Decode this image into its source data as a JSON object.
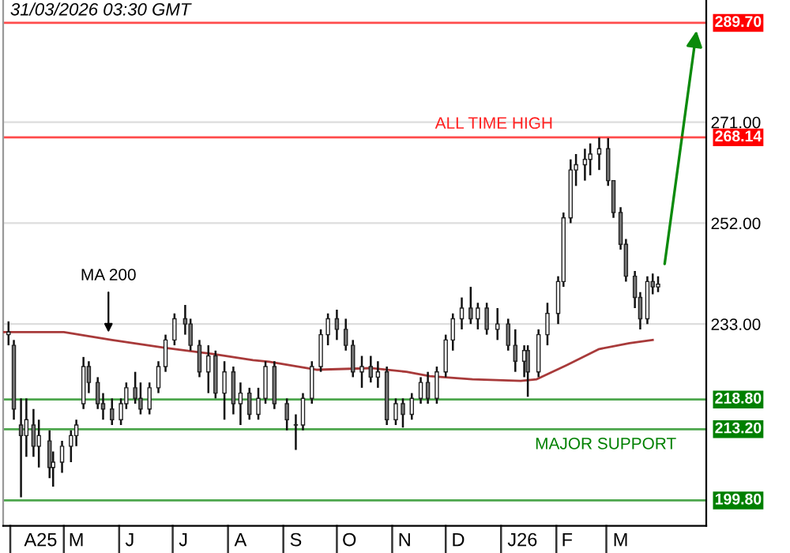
{
  "chart_data": {
    "type": "candlestick",
    "x": [
      "2025-03-31",
      "2025-04-03",
      "2025-04-07",
      "2025-04-10",
      "2025-04-14",
      "2025-04-17",
      "2025-04-23",
      "2025-04-25",
      "2025-04-30",
      "2025-05-05",
      "2025-05-08",
      "2025-05-12",
      "2025-05-15",
      "2025-05-20",
      "2025-05-23",
      "2025-05-28",
      "2025-06-02",
      "2025-06-05",
      "2025-06-10",
      "2025-06-13",
      "2025-06-18",
      "2025-06-23",
      "2025-06-27",
      "2025-07-02",
      "2025-07-08",
      "2025-07-11",
      "2025-07-16",
      "2025-07-21",
      "2025-07-25",
      "2025-07-30",
      "2025-08-04",
      "2025-08-08",
      "2025-08-13",
      "2025-08-18",
      "2025-08-22",
      "2025-08-27",
      "2025-09-03",
      "2025-09-08",
      "2025-09-12",
      "2025-09-17",
      "2025-09-22",
      "2025-09-26",
      "2025-10-01",
      "2025-10-06",
      "2025-10-10",
      "2025-10-15",
      "2025-10-20",
      "2025-10-24",
      "2025-10-29",
      "2025-11-03",
      "2025-11-07",
      "2025-11-12",
      "2025-11-17",
      "2025-11-21",
      "2025-11-26",
      "2025-12-01",
      "2025-12-05",
      "2025-12-10",
      "2025-12-15",
      "2025-12-19",
      "2025-12-24",
      "2025-12-30",
      "2026-01-05",
      "2026-01-09",
      "2026-01-14",
      "2026-01-16",
      "2026-01-22",
      "2026-01-27",
      "2026-02-02",
      "2026-02-05",
      "2026-02-09",
      "2026-02-12",
      "2026-02-17",
      "2026-02-20",
      "2026-02-25",
      "2026-03-02",
      "2026-03-05",
      "2026-03-09",
      "2026-03-12",
      "2026-03-17",
      "2026-03-20",
      "2026-03-24",
      "2026-03-27",
      "2026-03-30"
    ],
    "ohlc": [
      [
        231,
        233.5,
        229,
        231.5
      ],
      [
        229,
        230,
        215,
        217
      ],
      [
        214,
        219,
        200.4,
        212
      ],
      [
        212,
        219,
        208,
        215
      ],
      [
        214,
        217,
        208,
        210
      ],
      [
        210,
        215,
        206,
        212
      ],
      [
        211,
        213,
        204,
        206
      ],
      [
        206,
        209,
        202.4,
        207
      ],
      [
        207,
        211,
        205,
        210
      ],
      [
        210,
        213,
        207,
        212
      ],
      [
        212,
        215,
        210,
        214
      ],
      [
        218,
        226.8,
        217,
        225
      ],
      [
        225,
        226,
        220,
        222
      ],
      [
        222,
        223,
        217,
        218
      ],
      [
        218,
        220,
        215,
        217
      ],
      [
        217,
        219,
        214,
        215
      ],
      [
        215,
        219,
        214,
        218
      ],
      [
        218,
        222,
        217,
        221
      ],
      [
        221,
        224,
        218,
        219
      ],
      [
        219,
        222,
        216,
        217
      ],
      [
        217,
        222,
        216,
        221
      ],
      [
        221,
        226,
        220,
        225
      ],
      [
        225,
        231,
        224,
        230
      ],
      [
        230,
        235,
        229,
        234
      ],
      [
        234,
        236.6,
        231,
        233
      ],
      [
        233,
        234,
        228,
        229
      ],
      [
        229,
        230,
        223,
        224
      ],
      [
        224,
        229,
        220,
        227
      ],
      [
        227,
        228,
        219,
        220
      ],
      [
        220,
        226,
        215,
        224
      ],
      [
        224,
        225,
        216,
        218
      ],
      [
        218,
        222,
        214,
        220
      ],
      [
        220,
        221,
        215,
        216
      ],
      [
        216,
        221,
        215,
        219
      ],
      [
        219,
        226,
        218,
        225
      ],
      [
        225,
        226,
        217,
        218
      ],
      [
        218,
        219,
        213,
        215
      ],
      [
        214,
        216,
        209.3,
        214
      ],
      [
        214,
        220,
        213,
        219
      ],
      [
        219,
        226,
        218,
        225
      ],
      [
        225,
        232,
        224,
        231
      ],
      [
        231,
        235,
        229,
        234
      ],
      [
        234,
        235.7,
        230,
        232
      ],
      [
        232,
        234,
        228,
        229
      ],
      [
        229,
        230,
        223,
        224
      ],
      [
        224,
        227,
        221,
        225
      ],
      [
        225,
        227,
        222,
        223
      ],
      [
        223,
        226,
        221,
        224
      ],
      [
        224,
        225,
        214,
        215
      ],
      [
        215,
        219,
        214,
        218
      ],
      [
        218,
        219,
        213.5,
        216
      ],
      [
        216,
        220,
        215,
        219
      ],
      [
        219,
        223,
        218,
        222
      ],
      [
        222,
        224,
        218,
        219
      ],
      [
        219,
        225,
        218,
        224
      ],
      [
        224,
        231,
        223,
        230
      ],
      [
        230,
        235,
        228,
        234
      ],
      [
        234,
        238,
        232,
        236
      ],
      [
        236,
        240,
        233,
        234
      ],
      [
        234,
        237,
        232,
        236
      ],
      [
        236,
        237,
        231,
        232
      ],
      [
        232,
        236,
        230,
        233
      ],
      [
        233,
        234,
        228,
        229
      ],
      [
        229,
        232,
        224,
        226
      ],
      [
        226,
        229,
        223,
        228
      ],
      [
        228,
        229,
        219.3,
        224
      ],
      [
        224,
        232,
        223,
        231
      ],
      [
        231,
        237,
        229,
        235
      ],
      [
        235,
        242,
        233,
        241
      ],
      [
        241,
        254,
        240,
        253
      ],
      [
        253,
        264,
        252,
        262
      ],
      [
        262,
        265,
        259,
        263
      ],
      [
        263,
        266,
        260,
        264
      ],
      [
        264,
        267,
        261,
        265
      ],
      [
        265,
        268.1,
        262,
        266
      ],
      [
        266,
        268,
        259,
        260
      ],
      [
        260,
        260,
        253,
        254
      ],
      [
        254,
        255,
        247,
        248
      ],
      [
        248,
        249,
        241,
        242
      ],
      [
        242,
        243,
        236,
        238
      ],
      [
        238,
        239,
        232,
        234
      ],
      [
        234,
        242,
        233,
        241
      ],
      [
        241,
        242.5,
        238.6,
        240
      ],
      [
        240,
        242,
        239,
        240.5
      ]
    ],
    "series": [
      {
        "type": "line",
        "color": "#a83a3a",
        "x": [
          "2025-03-28",
          "2025-05-01",
          "2025-05-28",
          "2025-06-27",
          "2025-07-23",
          "2025-08-15",
          "2025-08-24",
          "2025-09-20",
          "2025-10-20",
          "2025-11-09",
          "2025-11-22",
          "2025-12-16",
          "2026-01-12",
          "2026-01-21",
          "2026-02-07",
          "2026-02-25",
          "2026-03-14",
          "2026-03-27"
        ],
        "values": [
          231.5,
          231.5,
          230,
          228.5,
          227.4,
          226.2,
          225.9,
          224.4,
          224.7,
          224,
          223.2,
          222.6,
          222.3,
          222.6,
          225.3,
          228.3,
          229.4,
          230
        ]
      }
    ],
    "xlim": [
      "2025-03-28",
      "2026-04-26"
    ],
    "xticks": [
      {
        "value": "2025-04-18",
        "label": "A25"
      },
      {
        "value": "2025-05-08",
        "label": "M"
      },
      {
        "value": "2025-06-07",
        "label": "J"
      },
      {
        "value": "2025-07-07",
        "label": "J"
      },
      {
        "value": "2025-08-08",
        "label": "A"
      },
      {
        "value": "2025-09-08",
        "label": "S"
      },
      {
        "value": "2025-10-08",
        "label": "O"
      },
      {
        "value": "2025-11-08",
        "label": "N"
      },
      {
        "value": "2025-12-08",
        "label": "D"
      },
      {
        "value": "2026-01-13",
        "label": "J26"
      },
      {
        "value": "2026-02-07",
        "label": "F"
      },
      {
        "value": "2026-03-09",
        "label": "M"
      }
    ],
    "ylim": [
      195,
      294
    ],
    "yticks": [
      {
        "value": 233,
        "label": "233.00"
      },
      {
        "value": 252,
        "label": "252.00"
      },
      {
        "value": 271,
        "label": "271.00"
      }
    ],
    "grid": "y",
    "ref_lines": [
      {
        "axis": "y",
        "value": 289.7,
        "label": "289.70",
        "color": "#ff0000"
      },
      {
        "axis": "y",
        "value": 268.14,
        "label": "268.14",
        "color": "#ff0000"
      },
      {
        "axis": "y",
        "value": 218.8,
        "label": "218.80",
        "color": "#008000"
      },
      {
        "axis": "y",
        "value": 213.2,
        "label": "213.20",
        "color": "#008000"
      },
      {
        "axis": "y",
        "value": 199.8,
        "label": "199.80",
        "color": "#008000"
      }
    ],
    "annotations": [
      "31/03/2026 03:30 GMT",
      {
        "text": "ALL TIME HIGH",
        "x": "2025-11-25",
        "y": 268.14
      },
      {
        "text": "MAJOR SUPPORT",
        "x": "2026-01-20",
        "y": 213.2
      },
      {
        "text": "MA 200",
        "x": "2025-05-26",
        "y": 230.6
      }
    ]
  }
}
